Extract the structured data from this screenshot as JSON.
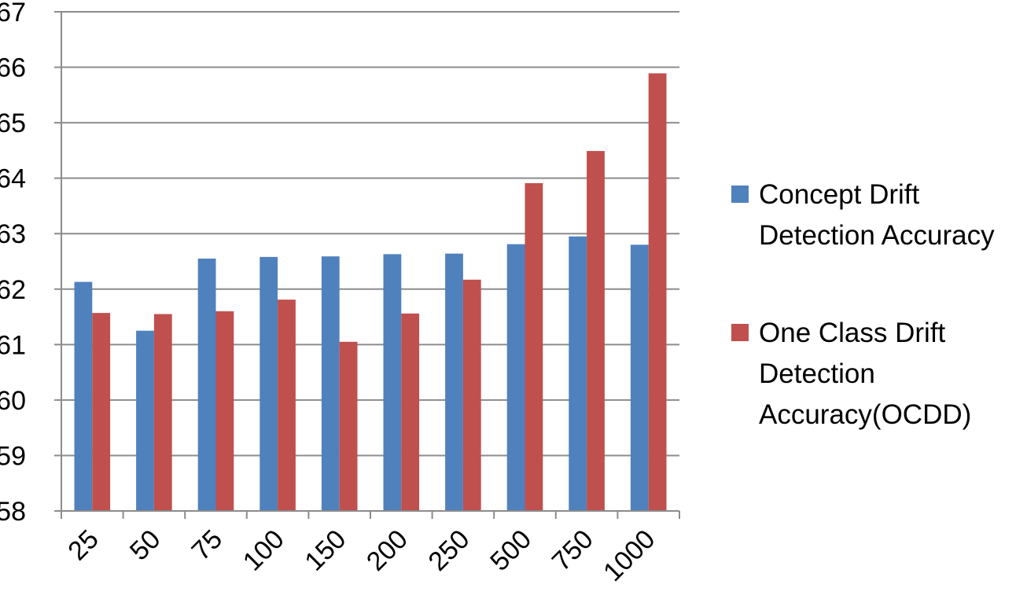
{
  "chart_data": {
    "type": "bar",
    "title": "",
    "xlabel": "",
    "ylabel": "",
    "categories": [
      "25",
      "50",
      "75",
      "100",
      "150",
      "200",
      "250",
      "500",
      "750",
      "1000"
    ],
    "series": [
      {
        "name": "Concept Drift Detection Accuracy",
        "color": "#4F81BD",
        "values": [
          62.13,
          61.25,
          62.55,
          62.58,
          62.59,
          62.63,
          62.64,
          62.81,
          62.95,
          62.8
        ]
      },
      {
        "name": "One Class Drift Detection Accuracy(OCDD)",
        "color": "#C0504D",
        "values": [
          61.57,
          61.55,
          61.6,
          61.81,
          61.05,
          61.56,
          62.17,
          63.91,
          64.49,
          65.89
        ]
      }
    ],
    "ylim": [
      58,
      67
    ],
    "yticks": [
      58,
      59,
      60,
      61,
      62,
      63,
      64,
      65,
      66,
      67
    ],
    "grid": true,
    "legend_position": "right"
  }
}
